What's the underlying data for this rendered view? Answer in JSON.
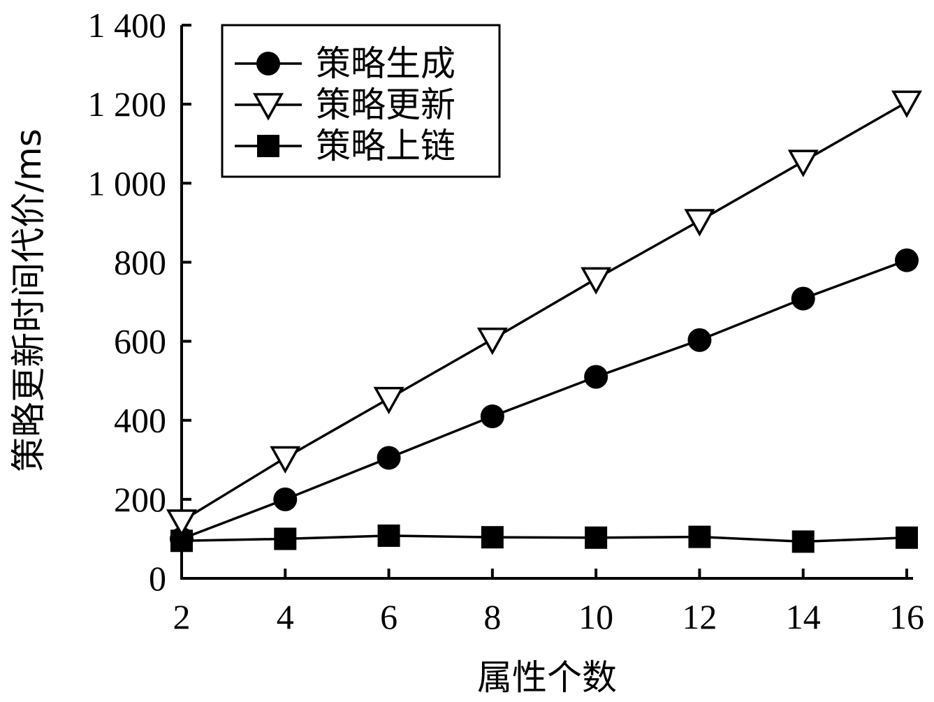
{
  "chart_data": {
    "type": "line",
    "xlabel": "属性个数",
    "ylabel": "策略更新时间代价/ms",
    "x": [
      2,
      4,
      6,
      8,
      10,
      12,
      14,
      16
    ],
    "x_tick_labels": [
      "2",
      "4",
      "6",
      "8",
      "10",
      "12",
      "14",
      "16"
    ],
    "y_ticks": [
      0,
      200,
      400,
      600,
      800,
      1000,
      1200,
      1400
    ],
    "y_tick_labels": [
      "0",
      "200",
      "400",
      "600",
      "800",
      "1 000",
      "1 200",
      "1 400"
    ],
    "xlim": [
      2,
      16
    ],
    "ylim": [
      0,
      1400
    ],
    "grid": false,
    "legend_position": "top-left",
    "series": [
      {
        "name": "策略生成",
        "marker": "filled-circle",
        "values": [
          100,
          200,
          305,
          410,
          510,
          603,
          708,
          805
        ]
      },
      {
        "name": "策略更新",
        "marker": "open-triangle-down",
        "values": [
          145,
          305,
          455,
          605,
          758,
          905,
          1055,
          1205
        ]
      },
      {
        "name": "策略上链",
        "marker": "filled-square",
        "values": [
          95,
          100,
          108,
          104,
          103,
          105,
          93,
          103
        ]
      }
    ]
  }
}
